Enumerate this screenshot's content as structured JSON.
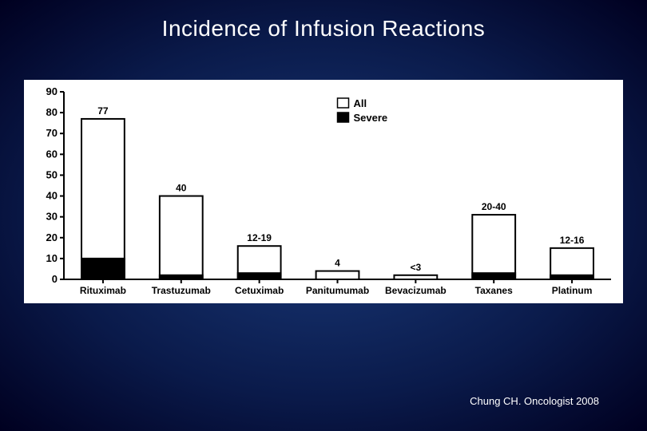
{
  "title": "Incidence of Infusion Reactions",
  "citation": "Chung CH. Oncologist 2008",
  "chart": {
    "type": "bar",
    "background_color": "#ffffff",
    "axis_color": "#000000",
    "axis_width": 2,
    "tick_len": 5,
    "ylim": [
      0,
      90
    ],
    "ytick_step": 10,
    "yticks": [
      0,
      10,
      20,
      30,
      40,
      50,
      60,
      70,
      80,
      90
    ],
    "bar_width": 0.55,
    "categories": [
      "Rituximab",
      "Trastuzumab",
      "Cetuximab",
      "Panitumumab",
      "Bevacizumab",
      "Taxanes",
      "Platinum"
    ],
    "value_labels": [
      "77",
      "40",
      "12-19",
      "4",
      "<3",
      "20-40",
      "12-16"
    ],
    "all_values": [
      77,
      40,
      16,
      4,
      2,
      31,
      15
    ],
    "severe_values": [
      10,
      2,
      3,
      0,
      0,
      3,
      2
    ],
    "fill_all": "#ffffff",
    "fill_severe": "#000000",
    "stroke": "#000000",
    "stroke_width": 2,
    "tick_fontsize": 13,
    "cat_fontsize": 12,
    "val_fontsize": 12,
    "legend": {
      "items": [
        {
          "label": "All",
          "fill": "#ffffff",
          "stroke": "#000000"
        },
        {
          "label": "Severe",
          "fill": "#000000",
          "stroke": "#000000"
        }
      ],
      "fontsize": 13
    }
  }
}
